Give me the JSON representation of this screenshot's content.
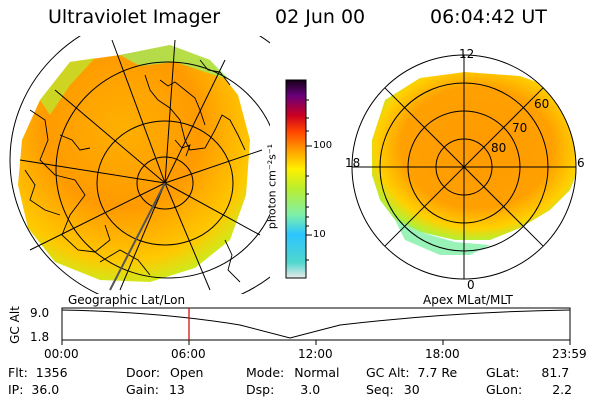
{
  "header": {
    "title": "Ultraviolet Imager",
    "date": "02 Jun 00",
    "time": "06:04:42 UT"
  },
  "colorbar": {
    "unit_label": "photon cm⁻²s⁻¹",
    "ticks": [
      "100",
      "10"
    ],
    "scale": "log",
    "colors": [
      "#e9e9e9",
      "#4fd6ce",
      "#2cc6ff",
      "#7ff0a8",
      "#b8ee30",
      "#fff000",
      "#ff9a00",
      "#ff4400",
      "#cc0020",
      "#6a007a",
      "#140018"
    ]
  },
  "left_panel": {
    "label": "Geographic Lat/Lon",
    "projection": "geographic"
  },
  "right_panel": {
    "label": "Apex MLat/MLT",
    "lat_labels": [
      "60",
      "70",
      "80"
    ],
    "mlt_labels": [
      "12",
      "18",
      "6",
      "0"
    ]
  },
  "altitude_plot": {
    "ylabel": "GC Alt",
    "y_ticks": [
      "9.0",
      "1.8"
    ],
    "x_ticks": [
      "00:00",
      "06:00",
      "12:00",
      "18:00",
      "23:59"
    ],
    "current_marker": "06:04",
    "marker_color": "#cc0000"
  },
  "info": {
    "flt": {
      "label": "Flt:",
      "value": "1356"
    },
    "ip": {
      "label": "IP:",
      "value": "36.0"
    },
    "door": {
      "label": "Door:",
      "value": "Open"
    },
    "gain": {
      "label": "Gain:",
      "value": "13"
    },
    "mode": {
      "label": "Mode:",
      "value": "Normal"
    },
    "dsp": {
      "label": "Dsp:",
      "value": "3.0"
    },
    "gcalt": {
      "label": "GC Alt:",
      "value": "7.7 Re"
    },
    "seq": {
      "label": "Seq:",
      "value": "30"
    },
    "glat": {
      "label": "GLat:",
      "value": "81.7"
    },
    "glon": {
      "label": "GLon:",
      "value": "2.2"
    }
  }
}
